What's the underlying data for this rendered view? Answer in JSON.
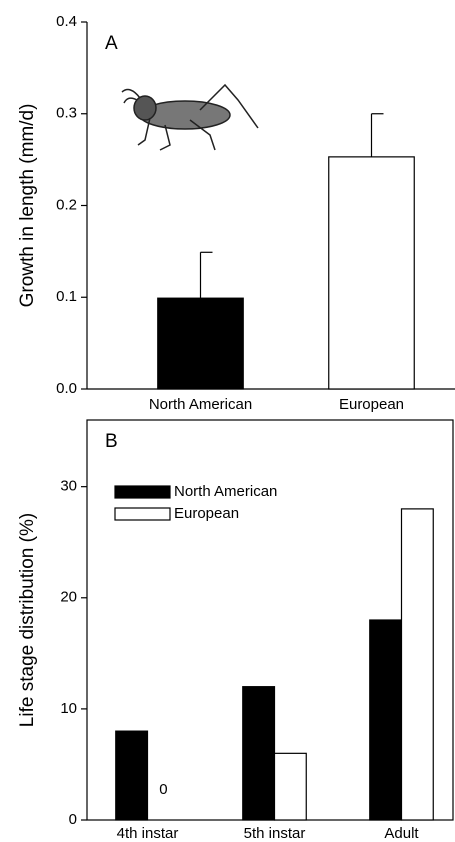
{
  "chart_data": [
    {
      "type": "bar",
      "panel": "A",
      "y_label": "Growth in length (mm/d)",
      "categories": [
        "North American",
        "European"
      ],
      "values": [
        0.099,
        0.253
      ],
      "errors": [
        0.05,
        0.047
      ],
      "colors": [
        "#000000",
        "#ffffff"
      ],
      "ylim": [
        0,
        0.4
      ],
      "yticks": [
        {
          "value": 0,
          "label": "0.0"
        },
        0.1,
        0.2,
        0.3,
        0.4
      ]
    },
    {
      "type": "grouped_bar",
      "panel": "B",
      "y_label": "Life stage distribution (%)",
      "categories": [
        "4th instar",
        "5th instar",
        "Adult"
      ],
      "series": [
        {
          "name": "North American",
          "color": "#000000",
          "values": [
            8,
            12,
            18
          ]
        },
        {
          "name": "European",
          "color": "#ffffff",
          "values": [
            0,
            6,
            28
          ]
        }
      ],
      "ylim": [
        0,
        36
      ],
      "yticks": [
        0,
        10,
        20,
        30
      ],
      "legend": "upper left"
    }
  ]
}
